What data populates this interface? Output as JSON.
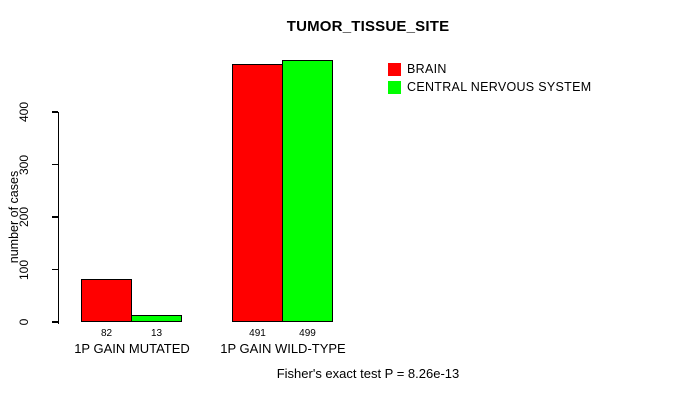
{
  "title": "TUMOR_TISSUE_SITE",
  "caption": "Fisher's exact test P = 8.26e-13",
  "chart_data": {
    "type": "bar",
    "title": "TUMOR_TISSUE_SITE",
    "categories": [
      "1P GAIN MUTATED",
      "1P GAIN WILD-TYPE"
    ],
    "series": [
      {
        "name": "BRAIN",
        "color": "#ff0000",
        "values": [
          82,
          491
        ]
      },
      {
        "name": "CENTRAL NERVOUS SYSTEM",
        "color": "#00ff00",
        "values": [
          13,
          499
        ]
      }
    ],
    "xlabel": "",
    "ylabel": "number of cases",
    "yticks": [
      0,
      100,
      200,
      300,
      400
    ],
    "ylim": [
      0,
      400
    ],
    "grid": false,
    "legend_position": "top-right",
    "bar_border_color": "#000000",
    "annotation": "Fisher's exact test P = 8.26e-13"
  }
}
